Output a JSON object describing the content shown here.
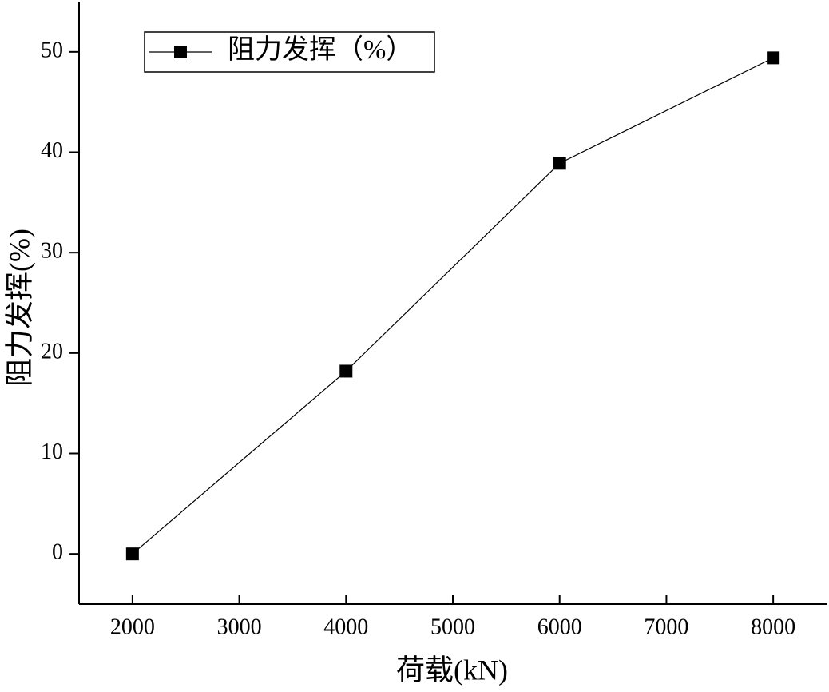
{
  "chart_data": {
    "type": "line",
    "x_label": "荷载(kN)",
    "y_label": "阻力发挥(%)",
    "x": [
      2000,
      4000,
      6000,
      8000
    ],
    "series": [
      {
        "name": "阻力发挥（%）",
        "color": "#000000",
        "values": [
          0,
          18.2,
          38.9,
          49.4
        ]
      }
    ],
    "xlim": [
      1500,
      8500
    ],
    "xticks": [
      2000,
      3000,
      4000,
      5000,
      6000,
      7000,
      8000
    ],
    "ylim": [
      -5,
      55
    ],
    "yticks": [
      0,
      10,
      20,
      30,
      40,
      50
    ],
    "grid": false,
    "legend": "top-left"
  }
}
